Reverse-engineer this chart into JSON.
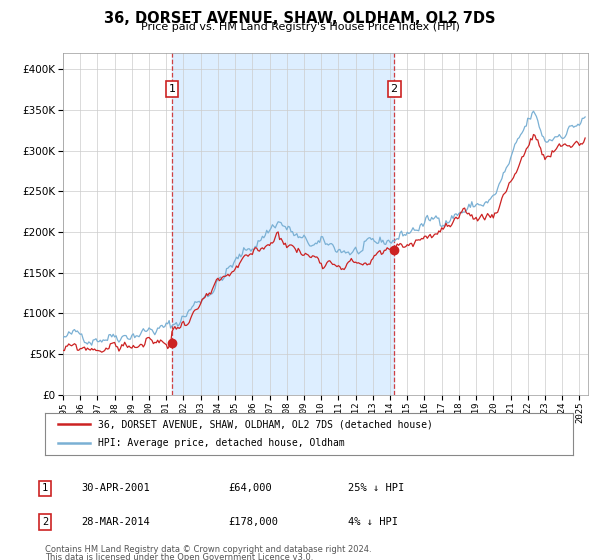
{
  "title": "36, DORSET AVENUE, SHAW, OLDHAM, OL2 7DS",
  "subtitle": "Price paid vs. HM Land Registry's House Price Index (HPI)",
  "bg_color": "#ffffff",
  "plot_bg_color": "#ffffff",
  "grid_color": "#cccccc",
  "hpi_color": "#7ab0d4",
  "prop_color": "#cc2222",
  "sale1_date_num": 2001.33,
  "sale1_price": 64000,
  "sale1_label": "30-APR-2001",
  "sale1_pct": "25% ↓ HPI",
  "sale2_date_num": 2014.24,
  "sale2_price": 178000,
  "sale2_label": "28-MAR-2014",
  "sale2_pct": "4% ↓ HPI",
  "shade_color": "#ddeeff",
  "legend_line1": "36, DORSET AVENUE, SHAW, OLDHAM, OL2 7DS (detached house)",
  "legend_line2": "HPI: Average price, detached house, Oldham",
  "footer1": "Contains HM Land Registry data © Crown copyright and database right 2024.",
  "footer2": "This data is licensed under the Open Government Licence v3.0.",
  "ylim_max": 420000,
  "yticks": [
    0,
    50000,
    100000,
    150000,
    200000,
    250000,
    300000,
    350000,
    400000
  ],
  "xlim_min": 1995.0,
  "xlim_max": 2025.5
}
